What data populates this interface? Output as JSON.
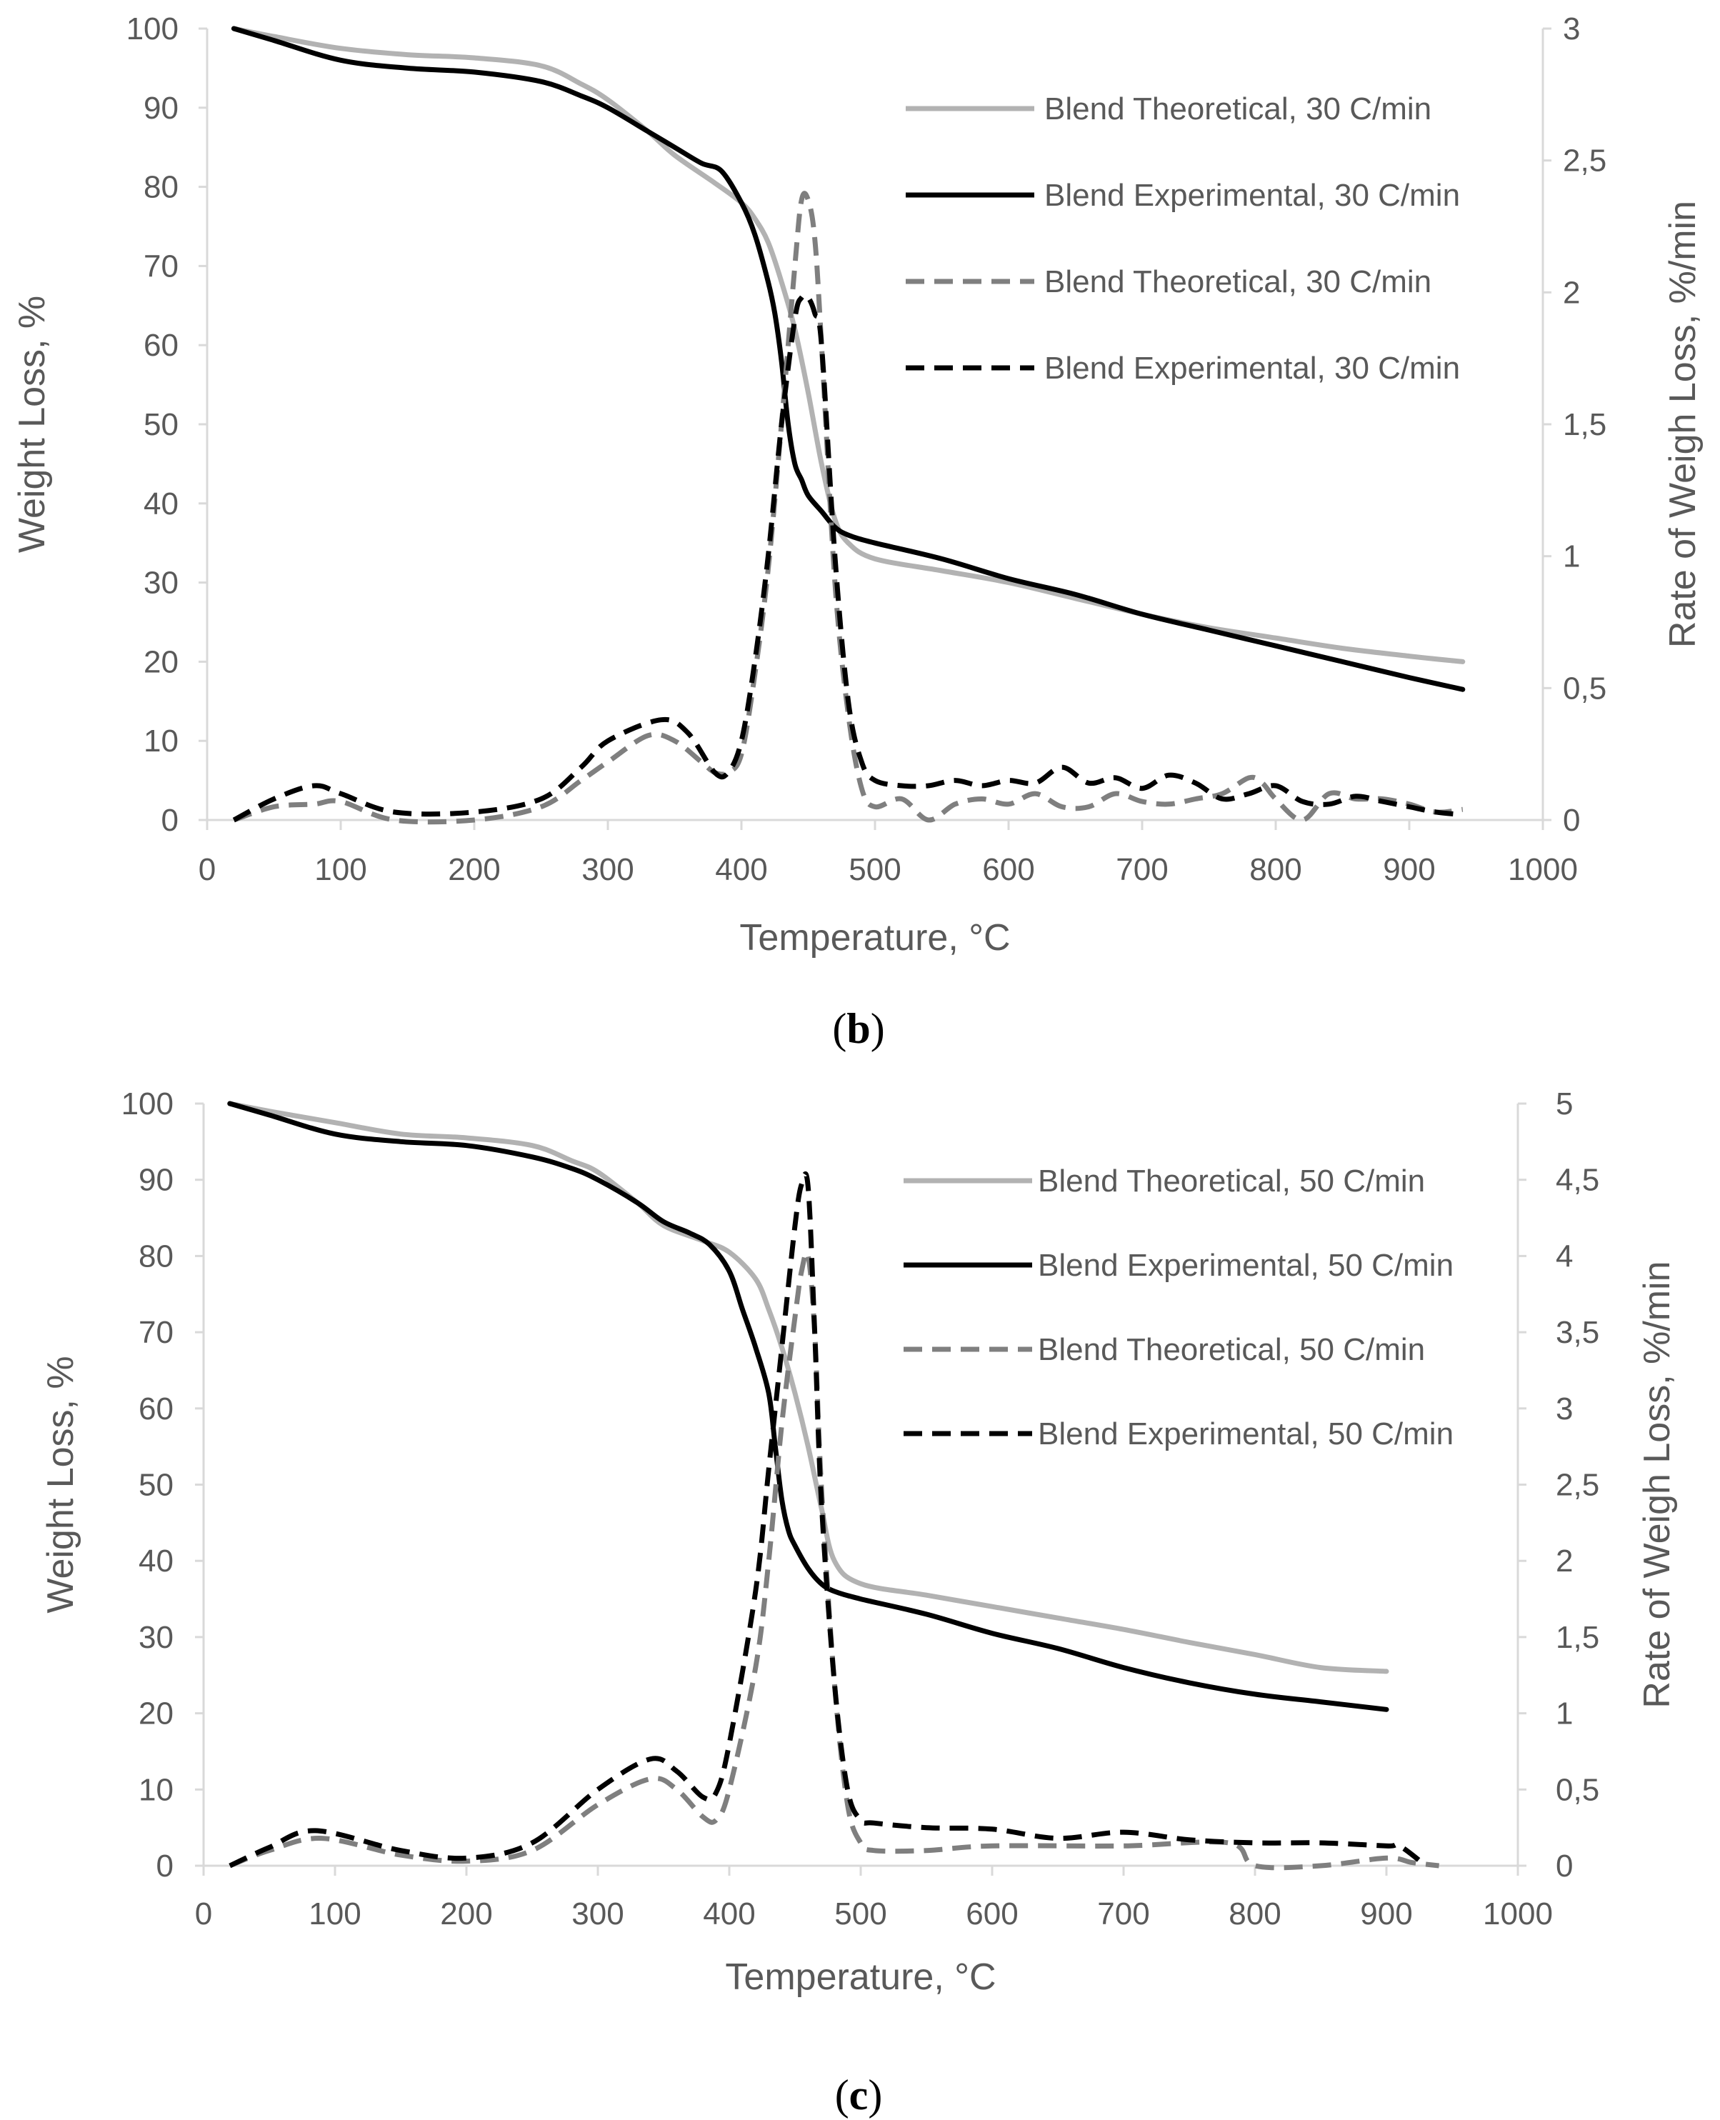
{
  "chart_data": [
    {
      "type": "line",
      "caption_letter": "b",
      "xlabel": "Temperature, °C",
      "ylabel": "Weight Loss, %",
      "y2label": "Rate of Weigh Loss, %/min",
      "xlim": [
        0,
        1000
      ],
      "ylim": [
        0,
        100
      ],
      "y2lim": [
        0,
        3
      ],
      "x_ticks": [
        "0",
        "100",
        "200",
        "300",
        "400",
        "500",
        "600",
        "700",
        "800",
        "900",
        "1000"
      ],
      "y_ticks": [
        "0",
        "10",
        "20",
        "30",
        "40",
        "50",
        "60",
        "70",
        "80",
        "90",
        "100"
      ],
      "y2_ticks": [
        "0",
        "0,5",
        "1",
        "1,5",
        "2",
        "2,5",
        "3"
      ],
      "legend_position": "top-right",
      "series": [
        {
          "name": "Blend Theoretical, 30 C/min",
          "axis": "left",
          "style": "solid",
          "color": "#b2b2b2",
          "x": [
            20,
            50,
            100,
            150,
            200,
            250,
            280,
            300,
            330,
            350,
            380,
            400,
            410,
            420,
            430,
            440,
            450,
            460,
            470,
            480,
            500,
            550,
            600,
            650,
            700,
            750,
            800,
            850,
            900,
            940
          ],
          "y": [
            100,
            99,
            97.5,
            96.7,
            96.3,
            95.3,
            93,
            91,
            87,
            84,
            80.5,
            78,
            76,
            73,
            68,
            62,
            54,
            45,
            38,
            35,
            33,
            31.5,
            30,
            28,
            26,
            24.3,
            23,
            21.7,
            20.7,
            20
          ]
        },
        {
          "name": "Blend Experimental, 30 C/min",
          "axis": "left",
          "style": "solid",
          "color": "#000000",
          "x": [
            20,
            50,
            100,
            150,
            200,
            250,
            280,
            300,
            330,
            350,
            370,
            385,
            400,
            410,
            420,
            425,
            430,
            435,
            440,
            445,
            450,
            460,
            470,
            480,
            500,
            550,
            600,
            650,
            700,
            750,
            800,
            850,
            900,
            940
          ],
          "y": [
            100,
            98.5,
            96,
            95,
            94.5,
            93.3,
            91.5,
            90,
            87,
            85,
            83,
            82,
            78,
            74,
            68,
            64,
            58,
            50,
            45,
            43,
            41,
            39,
            37,
            36,
            35,
            33,
            30.5,
            28.5,
            26,
            24,
            22,
            20,
            18,
            16.5
          ]
        },
        {
          "name": "Blend Theoretical, 30 C/min",
          "axis": "right",
          "style": "dashed",
          "color": "#7f7f7f",
          "x": [
            20,
            50,
            80,
            100,
            140,
            200,
            250,
            280,
            300,
            330,
            350,
            370,
            380,
            390,
            400,
            410,
            420,
            430,
            440,
            445,
            450,
            455,
            460,
            470,
            480,
            490,
            500,
            520,
            540,
            560,
            580,
            600,
            620,
            640,
            660,
            680,
            700,
            720,
            740,
            760,
            780,
            790,
            800,
            820,
            840,
            860,
            880,
            900,
            920,
            940
          ],
          "y": [
            0,
            0.05,
            0.06,
            0.07,
            0,
            0,
            0.05,
            0.15,
            0.22,
            0.32,
            0.3,
            0.22,
            0.18,
            0.18,
            0.25,
            0.55,
            0.95,
            1.5,
            2.1,
            2.35,
            2.35,
            2.2,
            1.8,
            0.9,
            0.4,
            0.12,
            0.05,
            0.08,
            0,
            0.06,
            0.08,
            0.06,
            0.1,
            0.05,
            0.05,
            0.1,
            0.07,
            0.06,
            0.08,
            0.1,
            0.16,
            0.14,
            0.08,
            0,
            0.1,
            0.08,
            0.08,
            0.06,
            0.03,
            0.04
          ]
        },
        {
          "name": "Blend Experimental, 30 C/min",
          "axis": "right",
          "style": "dashed",
          "color": "#000000",
          "x": [
            20,
            50,
            80,
            100,
            140,
            200,
            250,
            280,
            300,
            340,
            360,
            380,
            390,
            400,
            410,
            420,
            430,
            440,
            445,
            450,
            455,
            460,
            470,
            480,
            490,
            500,
            520,
            540,
            560,
            580,
            600,
            620,
            640,
            660,
            680,
            700,
            720,
            740,
            760,
            780,
            800,
            820,
            840,
            860,
            880,
            900,
            920,
            940
          ],
          "y": [
            0,
            0.08,
            0.13,
            0.1,
            0.03,
            0.03,
            0.08,
            0.2,
            0.3,
            0.38,
            0.33,
            0.18,
            0.18,
            0.3,
            0.6,
            1.0,
            1.5,
            1.9,
            1.98,
            1.98,
            1.92,
            1.8,
            1.0,
            0.45,
            0.22,
            0.15,
            0.13,
            0.13,
            0.15,
            0.13,
            0.15,
            0.14,
            0.2,
            0.14,
            0.16,
            0.12,
            0.17,
            0.14,
            0.08,
            0.1,
            0.13,
            0.07,
            0.06,
            0.09,
            0.07,
            0.05,
            0.03,
            0.02
          ]
        }
      ]
    },
    {
      "type": "line",
      "caption_letter": "c",
      "xlabel": "Temperature, °C",
      "ylabel": "Weight Loss, %",
      "y2label": "Rate of Weigh Loss, %/min",
      "xlim": [
        0,
        1000
      ],
      "ylim": [
        0,
        100
      ],
      "y2lim": [
        0,
        5
      ],
      "x_ticks": [
        "0",
        "100",
        "200",
        "300",
        "400",
        "500",
        "600",
        "700",
        "800",
        "900",
        "1000"
      ],
      "y_ticks": [
        "0",
        "10",
        "20",
        "30",
        "40",
        "50",
        "60",
        "70",
        "80",
        "90",
        "100"
      ],
      "y2_ticks": [
        "0",
        "0,5",
        "1",
        "1,5",
        "2",
        "2,5",
        "3",
        "3,5",
        "4",
        "4,5",
        "5"
      ],
      "legend_position": "top-right",
      "series": [
        {
          "name": "Blend Theoretical, 50 C/min",
          "axis": "left",
          "style": "solid",
          "color": "#b2b2b2",
          "x": [
            20,
            50,
            100,
            150,
            200,
            250,
            280,
            300,
            330,
            350,
            380,
            400,
            420,
            430,
            440,
            450,
            460,
            470,
            480,
            500,
            550,
            600,
            650,
            700,
            750,
            800,
            850,
            900
          ],
          "y": [
            100,
            99,
            97.5,
            96,
            95.5,
            94.5,
            92.5,
            91,
            87,
            84,
            82,
            80.5,
            77,
            73,
            68,
            62,
            55,
            47,
            40,
            37,
            35.5,
            34,
            32.5,
            31,
            29.3,
            27.7,
            26,
            25.5
          ]
        },
        {
          "name": "Blend Experimental, 50 C/min",
          "axis": "left",
          "style": "solid",
          "color": "#000000",
          "x": [
            20,
            50,
            100,
            150,
            200,
            250,
            280,
            300,
            330,
            350,
            370,
            385,
            400,
            410,
            420,
            430,
            435,
            440,
            445,
            450,
            460,
            470,
            480,
            500,
            550,
            600,
            650,
            700,
            750,
            800,
            850,
            900
          ],
          "y": [
            100,
            98.5,
            96,
            95,
            94.5,
            93,
            91.5,
            90,
            87,
            84.5,
            83,
            81.5,
            78,
            73,
            68,
            62,
            55,
            48,
            44,
            42,
            39,
            37,
            36,
            35,
            33,
            30.5,
            28.5,
            26,
            24,
            22.5,
            21.5,
            20.5
          ]
        },
        {
          "name": "Blend Theoretical, 50 C/min",
          "axis": "right",
          "style": "dashed",
          "color": "#7f7f7f",
          "x": [
            20,
            50,
            90,
            150,
            200,
            250,
            300,
            340,
            360,
            380,
            390,
            400,
            420,
            430,
            440,
            450,
            455,
            460,
            465,
            470,
            480,
            490,
            500,
            510,
            550,
            600,
            700,
            780,
            800,
            850,
            900,
            920,
            940
          ],
          "y": [
            0,
            0.1,
            0.18,
            0.07,
            0.03,
            0.1,
            0.4,
            0.57,
            0.5,
            0.32,
            0.3,
            0.5,
            1.3,
            2.0,
            2.9,
            3.6,
            3.9,
            4.0,
            3.5,
            2.5,
            1.2,
            0.4,
            0.15,
            0.1,
            0.1,
            0.13,
            0.13,
            0.15,
            0.0,
            0.0,
            0.05,
            0.02,
            0.0
          ]
        },
        {
          "name": "Blend Experimental, 50 C/min",
          "axis": "right",
          "style": "dashed",
          "color": "#000000",
          "x": [
            20,
            50,
            85,
            150,
            200,
            250,
            300,
            340,
            360,
            380,
            390,
            400,
            420,
            430,
            440,
            450,
            455,
            460,
            465,
            470,
            480,
            490,
            500,
            510,
            550,
            600,
            650,
            700,
            750,
            800,
            850,
            900,
            910,
            930
          ],
          "y": [
            0,
            0.12,
            0.23,
            0.1,
            0.05,
            0.15,
            0.5,
            0.7,
            0.62,
            0.45,
            0.48,
            0.8,
            1.8,
            2.6,
            3.4,
            4.2,
            4.47,
            4.45,
            3.5,
            2.4,
            1.2,
            0.5,
            0.3,
            0.28,
            0.25,
            0.24,
            0.18,
            0.22,
            0.17,
            0.15,
            0.15,
            0.13,
            0.13,
            0.0
          ]
        }
      ]
    }
  ]
}
